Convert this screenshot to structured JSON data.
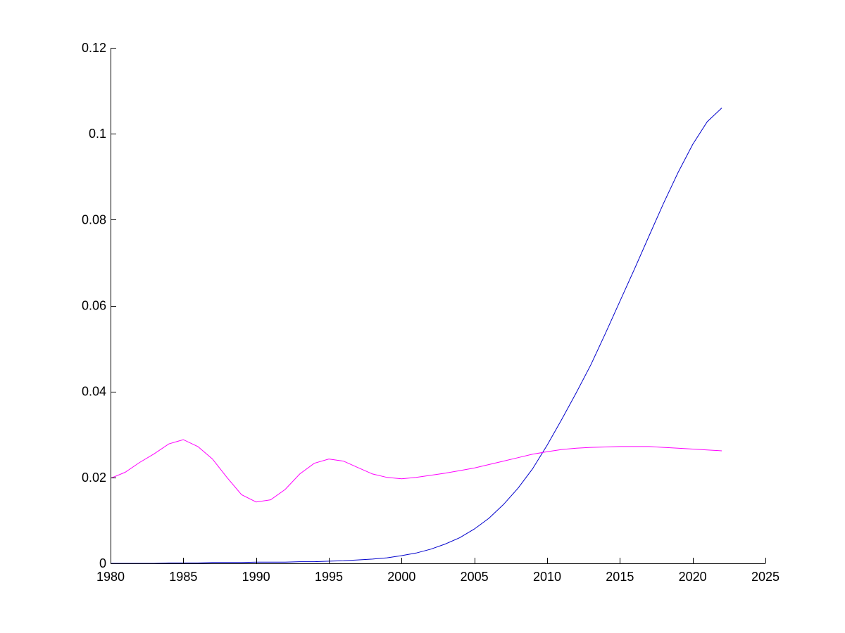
{
  "chart_data": {
    "type": "line",
    "title": "",
    "xlabel": "",
    "ylabel": "",
    "xlim": [
      1980,
      2025
    ],
    "ylim": [
      0,
      0.12
    ],
    "grid": false,
    "x_ticks": [
      1980,
      1985,
      1990,
      1995,
      2000,
      2005,
      2010,
      2015,
      2020,
      2025
    ],
    "x_tick_labels": [
      "1980",
      "1985",
      "1990",
      "1995",
      "2000",
      "2005",
      "2010",
      "2015",
      "2020",
      "2025"
    ],
    "y_ticks": [
      0,
      0.02,
      0.04,
      0.06,
      0.08,
      0.1,
      0.12
    ],
    "y_tick_labels": [
      "0",
      "0.02",
      "0.04",
      "0.06",
      "0.08",
      "0.1",
      "0.12"
    ],
    "x": [
      1980,
      1981,
      1982,
      1983,
      1984,
      1985,
      1986,
      1987,
      1988,
      1989,
      1990,
      1991,
      1992,
      1993,
      1994,
      1995,
      1996,
      1997,
      1998,
      1999,
      2000,
      2001,
      2002,
      2003,
      2004,
      2005,
      2006,
      2007,
      2008,
      2009,
      2010,
      2011,
      2012,
      2013,
      2014,
      2015,
      2016,
      2017,
      2018,
      2019,
      2020,
      2021,
      2022
    ],
    "series": [
      {
        "color": "#0000cc",
        "values": [
          0.0,
          0.0,
          0.0,
          0.0,
          0.0001,
          0.0001,
          0.0001,
          0.0002,
          0.0002,
          0.0002,
          0.0003,
          0.0003,
          0.0003,
          0.0004,
          0.0004,
          0.0005,
          0.0006,
          0.0008,
          0.001,
          0.0013,
          0.0018,
          0.0024,
          0.0033,
          0.0045,
          0.006,
          0.008,
          0.0105,
          0.0137,
          0.0175,
          0.022,
          0.0275,
          0.0335,
          0.0397,
          0.0462,
          0.0535,
          0.061,
          0.0685,
          0.0762,
          0.0838,
          0.091,
          0.0975,
          0.1028,
          0.106
        ]
      },
      {
        "color": "#ff00ff",
        "values": [
          0.0198,
          0.0212,
          0.0235,
          0.0255,
          0.0278,
          0.0288,
          0.0272,
          0.0243,
          0.02,
          0.016,
          0.0143,
          0.0148,
          0.0172,
          0.0208,
          0.0233,
          0.0243,
          0.0238,
          0.0223,
          0.0208,
          0.02,
          0.0197,
          0.02,
          0.0205,
          0.021,
          0.0216,
          0.0222,
          0.023,
          0.0238,
          0.0246,
          0.0254,
          0.026,
          0.0265,
          0.0268,
          0.027,
          0.0271,
          0.0272,
          0.0272,
          0.0272,
          0.027,
          0.0268,
          0.0266,
          0.0264,
          0.0262
        ]
      }
    ]
  }
}
